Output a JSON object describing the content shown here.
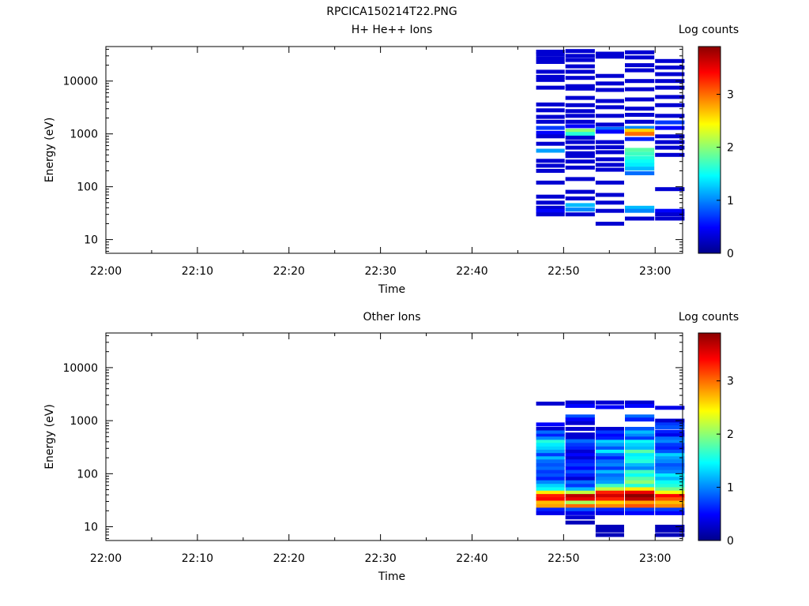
{
  "page_title": "RPCICA150214T22.PNG",
  "colormap": [
    "#00008b",
    "#0000ff",
    "#0080ff",
    "#00ffff",
    "#80ff80",
    "#ffff00",
    "#ff8000",
    "#ff0000",
    "#8b0000"
  ],
  "chart_data": [
    {
      "type": "heatmap",
      "title": "H+ He++ Ions",
      "xlabel": "Time",
      "ylabel": "Energy (eV)",
      "x_ticks": [
        "22:00",
        "22:10",
        "22:20",
        "22:30",
        "22:40",
        "22:50",
        "23:00"
      ],
      "x_range_minutes": [
        0,
        63
      ],
      "y_scale": "log",
      "y_ticks": [
        "10",
        "100",
        "1000",
        "10000"
      ],
      "y_range": [
        5.5,
        45000
      ],
      "colorbar": {
        "label": "Log counts",
        "ticks": [
          "0",
          "1",
          "2",
          "3"
        ],
        "range": [
          0,
          3.9
        ]
      },
      "grid": false,
      "time_bins": [
        {
          "start": 47,
          "end": 50.2
        },
        {
          "start": 50.2,
          "end": 53.5
        },
        {
          "start": 53.5,
          "end": 56.7
        },
        {
          "start": 56.7,
          "end": 60
        },
        {
          "start": 60,
          "end": 63.3
        }
      ],
      "columns": [
        [
          [
            36000,
            0.3
          ],
          [
            32000,
            0.3
          ],
          [
            27000,
            0.3
          ],
          [
            23000,
            0.3
          ],
          [
            15000,
            0.3
          ],
          [
            12000,
            0.3
          ],
          [
            10500,
            0.3
          ],
          [
            7500,
            0.3
          ],
          [
            3600,
            0.3
          ],
          [
            2800,
            0.3
          ],
          [
            2100,
            0.3
          ],
          [
            1700,
            0.3
          ],
          [
            1300,
            0.7
          ],
          [
            1050,
            0.5
          ],
          [
            900,
            0.3
          ],
          [
            650,
            0.3
          ],
          [
            480,
            1.1
          ],
          [
            310,
            0.3
          ],
          [
            250,
            0.3
          ],
          [
            200,
            0.3
          ],
          [
            120,
            0.3
          ],
          [
            65,
            0.3
          ],
          [
            50,
            0.3
          ],
          [
            40,
            0.3
          ],
          [
            35,
            0.5
          ],
          [
            30,
            0.3
          ]
        ],
        [
          [
            37000,
            0.3
          ],
          [
            30000,
            0.3
          ],
          [
            25000,
            0.3
          ],
          [
            19000,
            0.3
          ],
          [
            15000,
            0.3
          ],
          [
            11500,
            0.3
          ],
          [
            8000,
            0.3
          ],
          [
            7200,
            0.3
          ],
          [
            4800,
            0.3
          ],
          [
            3500,
            0.3
          ],
          [
            2700,
            0.3
          ],
          [
            2200,
            0.3
          ],
          [
            1700,
            0.3
          ],
          [
            1400,
            0.5
          ],
          [
            1150,
            2.0
          ],
          [
            1000,
            1.6
          ],
          [
            850,
            0.3
          ],
          [
            700,
            0.3
          ],
          [
            550,
            0.3
          ],
          [
            430,
            0.3
          ],
          [
            380,
            0.3
          ],
          [
            300,
            0.3
          ],
          [
            230,
            0.3
          ],
          [
            140,
            0.3
          ],
          [
            80,
            0.3
          ],
          [
            60,
            0.3
          ],
          [
            45,
            1.2
          ],
          [
            37,
            1.0
          ],
          [
            30,
            0.3
          ]
        ],
        [
          [
            33000,
            0.3
          ],
          [
            29000,
            0.3
          ],
          [
            12500,
            0.3
          ],
          [
            9000,
            0.3
          ],
          [
            6800,
            0.3
          ],
          [
            4200,
            0.3
          ],
          [
            3200,
            0.3
          ],
          [
            2200,
            0.3
          ],
          [
            1500,
            0.3
          ],
          [
            1250,
            0.9
          ],
          [
            1100,
            0.5
          ],
          [
            700,
            0.3
          ],
          [
            560,
            0.3
          ],
          [
            450,
            0.3
          ],
          [
            330,
            0.3
          ],
          [
            260,
            0.3
          ],
          [
            210,
            0.3
          ],
          [
            120,
            0.3
          ],
          [
            70,
            0.3
          ],
          [
            50,
            0.3
          ],
          [
            35,
            0.3
          ],
          [
            20,
            0.3
          ]
        ],
        [
          [
            35000,
            0.3
          ],
          [
            28000,
            0.3
          ],
          [
            20000,
            0.3
          ],
          [
            16000,
            0.3
          ],
          [
            10000,
            0.3
          ],
          [
            7000,
            0.3
          ],
          [
            4500,
            0.3
          ],
          [
            3000,
            0.3
          ],
          [
            2300,
            0.3
          ],
          [
            1700,
            0.3
          ],
          [
            1300,
            1.0
          ],
          [
            1150,
            2.6
          ],
          [
            1000,
            3.0
          ],
          [
            800,
            0.6
          ],
          [
            500,
            1.8
          ],
          [
            420,
            1.7
          ],
          [
            350,
            1.6
          ],
          [
            300,
            1.5
          ],
          [
            260,
            1.4
          ],
          [
            220,
            1.2
          ],
          [
            180,
            0.9
          ],
          [
            40,
            1.2
          ],
          [
            35,
            1.0
          ],
          [
            25,
            0.3
          ]
        ],
        [
          [
            24000,
            0.3
          ],
          [
            18000,
            0.3
          ],
          [
            13500,
            0.3
          ],
          [
            10000,
            0.3
          ],
          [
            7500,
            0.3
          ],
          [
            5000,
            0.3
          ],
          [
            3500,
            0.3
          ],
          [
            2200,
            0.3
          ],
          [
            1650,
            0.7
          ],
          [
            1300,
            0.5
          ],
          [
            900,
            0.3
          ],
          [
            700,
            0.3
          ],
          [
            550,
            0.3
          ],
          [
            400,
            0.3
          ],
          [
            90,
            0.3
          ],
          [
            35,
            0.5
          ],
          [
            30,
            0.3
          ],
          [
            25,
            0.3
          ]
        ]
      ]
    },
    {
      "type": "heatmap",
      "title": "Other Ions",
      "xlabel": "Time",
      "ylabel": "Energy (eV)",
      "x_ticks": [
        "22:00",
        "22:10",
        "22:20",
        "22:30",
        "22:40",
        "22:50",
        "23:00"
      ],
      "x_range_minutes": [
        0,
        63
      ],
      "y_scale": "log",
      "y_ticks": [
        "10",
        "100",
        "1000",
        "10000"
      ],
      "y_range": [
        5.5,
        45000
      ],
      "colorbar": {
        "label": "Log counts",
        "ticks": [
          "0",
          "1",
          "2",
          "3"
        ],
        "range": [
          0,
          3.9
        ]
      },
      "grid": false,
      "time_bins": [
        {
          "start": 47,
          "end": 50.2
        },
        {
          "start": 50.2,
          "end": 53.5
        },
        {
          "start": 53.5,
          "end": 56.7
        },
        {
          "start": 56.7,
          "end": 60
        },
        {
          "start": 60,
          "end": 63.3
        }
      ],
      "columns": [
        [
          [
            2100,
            0.3
          ],
          [
            850,
            0.5
          ],
          [
            700,
            0.3
          ],
          [
            600,
            0.9
          ],
          [
            520,
            0.6
          ],
          [
            460,
            1.0
          ],
          [
            400,
            1.6
          ],
          [
            350,
            1.4
          ],
          [
            300,
            1.3
          ],
          [
            260,
            1.1
          ],
          [
            225,
            0.7
          ],
          [
            195,
            1.2
          ],
          [
            170,
            0.9
          ],
          [
            145,
            0.8
          ],
          [
            125,
            0.9
          ],
          [
            108,
            0.7
          ],
          [
            93,
            0.8
          ],
          [
            80,
            0.6
          ],
          [
            69,
            1.0
          ],
          [
            59,
            1.3
          ],
          [
            51,
            1.5
          ],
          [
            44,
            2.5
          ],
          [
            38,
            3.3
          ],
          [
            33,
            3.4
          ],
          [
            28.5,
            2.7
          ],
          [
            24.5,
            2.8
          ],
          [
            21,
            0.6
          ],
          [
            18,
            0.4
          ]
        ],
        [
          [
            2200,
            0.3
          ],
          [
            1900,
            0.5
          ],
          [
            1200,
            0.8
          ],
          [
            1050,
            0.5
          ],
          [
            900,
            0.3
          ],
          [
            700,
            0.3
          ],
          [
            550,
            0.3
          ],
          [
            470,
            0.3
          ],
          [
            410,
            0.9
          ],
          [
            350,
            0.7
          ],
          [
            300,
            0.6
          ],
          [
            260,
            0.3
          ],
          [
            225,
            0.5
          ],
          [
            195,
            0.3
          ],
          [
            170,
            0.6
          ],
          [
            145,
            0.7
          ],
          [
            125,
            0.5
          ],
          [
            108,
            0.8
          ],
          [
            93,
            0.6
          ],
          [
            80,
            0.3
          ],
          [
            69,
            0.9
          ],
          [
            59,
            0.7
          ],
          [
            51,
            1.2
          ],
          [
            44,
            2.2
          ],
          [
            38,
            3.7
          ],
          [
            33,
            3.5
          ],
          [
            28.5,
            2.1
          ],
          [
            24.5,
            3.0
          ],
          [
            21,
            0.8
          ],
          [
            18,
            0.4
          ],
          [
            15,
            0.3
          ],
          [
            12,
            0.2
          ]
        ],
        [
          [
            2200,
            0.3
          ],
          [
            1800,
            0.5
          ],
          [
            700,
            0.3
          ],
          [
            600,
            0.7
          ],
          [
            520,
            0.5
          ],
          [
            460,
            0.6
          ],
          [
            400,
            1.3
          ],
          [
            350,
            1.1
          ],
          [
            300,
            0.8
          ],
          [
            260,
            1.4
          ],
          [
            225,
            0.9
          ],
          [
            195,
            0.6
          ],
          [
            170,
            0.9
          ],
          [
            145,
            1.0
          ],
          [
            125,
            0.7
          ],
          [
            108,
            1.2
          ],
          [
            93,
            0.9
          ],
          [
            80,
            1.0
          ],
          [
            69,
            1.1
          ],
          [
            59,
            1.7
          ],
          [
            51,
            2.2
          ],
          [
            44,
            3.3
          ],
          [
            38,
            3.6
          ],
          [
            33,
            3.3
          ],
          [
            28.5,
            2.6
          ],
          [
            24.5,
            2.9
          ],
          [
            21,
            0.6
          ],
          [
            18,
            0.4
          ],
          [
            10,
            0.2
          ],
          [
            8.5,
            0.2
          ],
          [
            7,
            0.2
          ]
        ],
        [
          [
            2200,
            0.3
          ],
          [
            1900,
            0.5
          ],
          [
            1200,
            0.9
          ],
          [
            1050,
            0.6
          ],
          [
            700,
            0.8
          ],
          [
            600,
            1.2
          ],
          [
            520,
            1.0
          ],
          [
            460,
            0.7
          ],
          [
            400,
            1.5
          ],
          [
            350,
            1.3
          ],
          [
            300,
            1.2
          ],
          [
            260,
            1.8
          ],
          [
            225,
            1.4
          ],
          [
            195,
            1.5
          ],
          [
            170,
            1.6
          ],
          [
            145,
            1.2
          ],
          [
            125,
            1.0
          ],
          [
            108,
            1.7
          ],
          [
            93,
            1.5
          ],
          [
            80,
            1.8
          ],
          [
            69,
            2.0
          ],
          [
            59,
            1.6
          ],
          [
            51,
            2.5
          ],
          [
            44,
            3.5
          ],
          [
            38,
            3.9
          ],
          [
            33,
            3.7
          ],
          [
            28.5,
            2.8
          ],
          [
            24.5,
            3.1
          ],
          [
            21,
            0.7
          ],
          [
            18,
            0.5
          ]
        ],
        [
          [
            1750,
            0.4
          ],
          [
            1000,
            0.3
          ],
          [
            850,
            0.7
          ],
          [
            750,
            0.8
          ],
          [
            620,
            0.6
          ],
          [
            530,
            0.4
          ],
          [
            460,
            0.9
          ],
          [
            400,
            1.0
          ],
          [
            350,
            0.7
          ],
          [
            300,
            0.6
          ],
          [
            260,
            0.8
          ],
          [
            225,
            1.3
          ],
          [
            195,
            1.1
          ],
          [
            170,
            1.0
          ],
          [
            145,
            0.8
          ],
          [
            125,
            0.9
          ],
          [
            108,
            1.0
          ],
          [
            93,
            1.4
          ],
          [
            80,
            1.2
          ],
          [
            69,
            1.5
          ],
          [
            59,
            1.6
          ],
          [
            51,
            1.9
          ],
          [
            44,
            2.4
          ],
          [
            38,
            3.4
          ],
          [
            33,
            3.1
          ],
          [
            28.5,
            2.7
          ],
          [
            24.5,
            2.9
          ],
          [
            21,
            0.7
          ],
          [
            18,
            0.5
          ],
          [
            10,
            0.2
          ],
          [
            8.5,
            0.2
          ],
          [
            7,
            0.2
          ]
        ]
      ]
    }
  ]
}
